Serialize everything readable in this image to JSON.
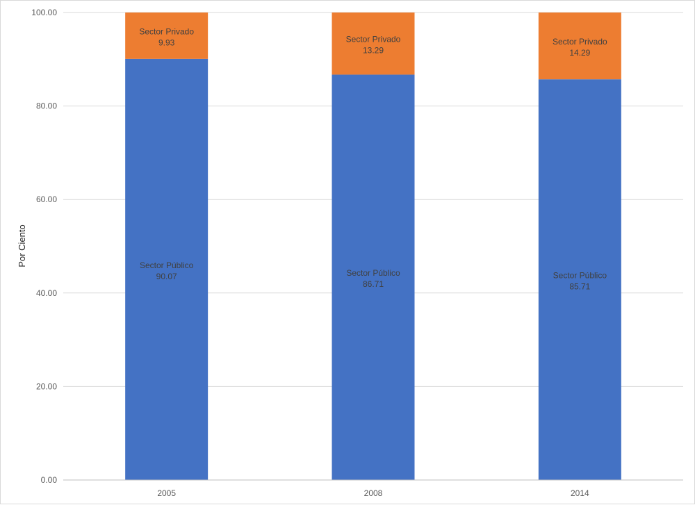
{
  "chart_data": {
    "type": "bar",
    "stacked": true,
    "categories": [
      "2005",
      "2008",
      "2014"
    ],
    "series": [
      {
        "name": "Sector Público",
        "values": [
          90.07,
          86.71,
          85.71
        ],
        "color": "#4472c4"
      },
      {
        "name": "Sector Privado",
        "values": [
          9.93,
          13.29,
          14.29
        ],
        "color": "#ed7d31"
      }
    ],
    "value_labels": {
      "Sector Público": [
        "90.07",
        "86.71",
        "85.71"
      ],
      "Sector Privado": [
        "9.93",
        "13.29",
        "14.29"
      ]
    },
    "title": "",
    "xlabel": "",
    "ylabel": "Por Ciento",
    "ylim": [
      0,
      100
    ],
    "yticks": [
      0,
      20,
      40,
      60,
      80,
      100
    ],
    "ytick_labels": [
      "0.00",
      "20.00",
      "40.00",
      "60.00",
      "80.00",
      "100.00"
    ],
    "grid": true,
    "legend": "none",
    "colors": {
      "gridline": "#d9d9d9",
      "axis_line": "#bfbfbf",
      "tick_text": "#595959",
      "label_text": "#404040"
    }
  }
}
